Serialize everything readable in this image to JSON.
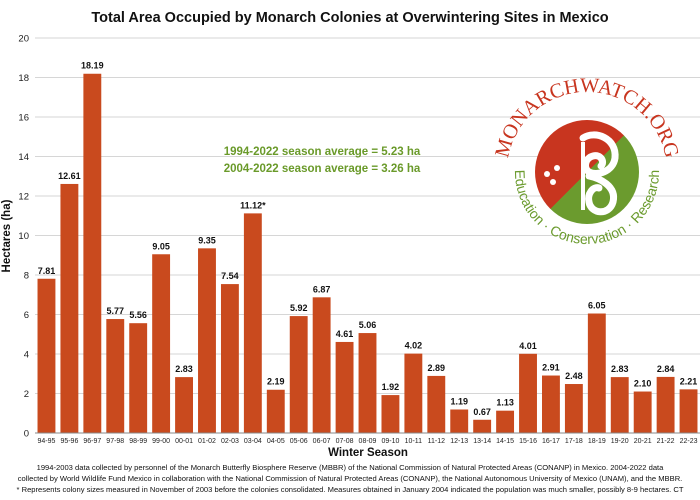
{
  "chart_data": {
    "type": "bar",
    "title": "Total Area Occupied by Monarch Colonies at Overwintering Sites in Mexico",
    "xlabel": "Winter Season",
    "ylabel": "Hectares (ha)",
    "ylim": [
      0,
      20
    ],
    "yticks": [
      0,
      2,
      4,
      6,
      8,
      10,
      12,
      14,
      16,
      18,
      20
    ],
    "grid": true,
    "bar_color": "#c94a1e",
    "categories": [
      "94-95",
      "95-96",
      "96-97",
      "97-98",
      "98-99",
      "99-00",
      "00-01",
      "01-02",
      "02-03",
      "03-04",
      "04-05",
      "05-06",
      "06-07",
      "07-08",
      "08-09",
      "09-10",
      "10-11",
      "11-12",
      "12-13",
      "13-14",
      "14-15",
      "15-16",
      "16-17",
      "17-18",
      "18-19",
      "19-20",
      "20-21",
      "21-22",
      "22-23"
    ],
    "values": [
      7.81,
      12.61,
      18.19,
      5.77,
      5.56,
      9.05,
      2.83,
      9.35,
      7.54,
      11.12,
      2.19,
      5.92,
      6.87,
      4.61,
      5.06,
      1.92,
      4.02,
      2.89,
      1.19,
      0.67,
      1.13,
      4.01,
      2.91,
      2.48,
      6.05,
      2.83,
      2.1,
      2.84,
      2.21
    ],
    "data_labels": [
      "7.81",
      "12.61",
      "18.19",
      "5.77",
      "5.56",
      "9.05",
      "2.83",
      "9.35",
      "7.54",
      "11.12*",
      "2.19",
      "5.92",
      "6.87",
      "4.61",
      "5.06",
      "1.92",
      "4.02",
      "2.89",
      "1.19",
      "0.67",
      "1.13",
      "4.01",
      "2.91",
      "2.48",
      "6.05",
      "2.83",
      "2.10",
      "2.84",
      "2.21"
    ],
    "annotations": [
      "1994-2022 season average = 5.23 ha",
      "2004-2022 season average = 3.26 ha"
    ],
    "annotation_color": "#6a9a2a"
  },
  "logo": {
    "name": "MONARCHWATCH.ORG",
    "tagline": "Education · Conservation · Research",
    "colors": {
      "red": "#c8351f",
      "green": "#6b9b2e"
    }
  },
  "footnote": [
    "1994-2003 data collected by personnel of the Monarch Butterfly Biosphere Reserve (MBBR) of the National Commission of Natural Protected Areas (CONANP) in Mexico. 2004-2022 data",
    "collected by World Wildlife Fund Mexico in collaboration with the National Commission of Natural Protected Areas (CONANP), the National Autonomous University of Mexico (UNAM), and the MBBR.",
    "* Represents colony sizes measured in November of 2003 before the colonies consolidated. Measures obtained in January 2004 indicated the population was much smaller, possibly 8-9 hectares. CT"
  ]
}
